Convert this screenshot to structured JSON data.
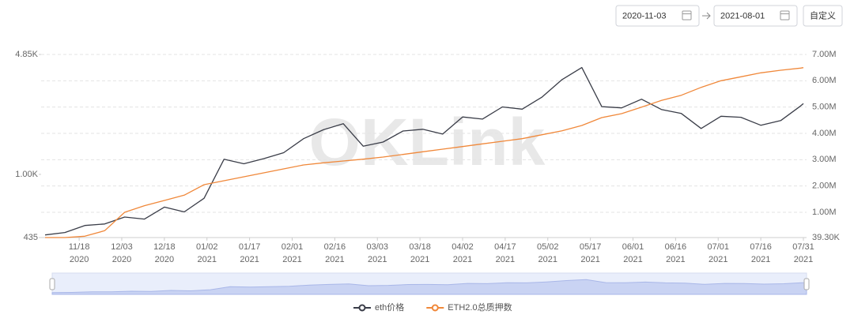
{
  "date_range": {
    "start": "2020-11-03",
    "end": "2021-08-01"
  },
  "custom_button": "自定义",
  "chart_data": {
    "type": "line",
    "watermark": "OKLink",
    "x": [
      "2020-11-06",
      "2020-11-13",
      "2020-11-20",
      "2020-11-27",
      "2020-12-04",
      "2020-12-11",
      "2020-12-18",
      "2020-12-25",
      "2021-01-01",
      "2021-01-08",
      "2021-01-15",
      "2021-01-22",
      "2021-01-29",
      "2021-02-05",
      "2021-02-12",
      "2021-02-19",
      "2021-02-26",
      "2021-03-05",
      "2021-03-12",
      "2021-03-19",
      "2021-03-26",
      "2021-04-02",
      "2021-04-09",
      "2021-04-16",
      "2021-04-23",
      "2021-04-30",
      "2021-05-07",
      "2021-05-14",
      "2021-05-21",
      "2021-05-28",
      "2021-06-04",
      "2021-06-11",
      "2021-06-18",
      "2021-06-25",
      "2021-07-02",
      "2021-07-09",
      "2021-07-16",
      "2021-07-23",
      "2021-07-30",
      "2021-07-31"
    ],
    "series": [
      {
        "name": "eth价格",
        "color": "#3a3d48",
        "axis": "y",
        "values": [
          450,
          465,
          510,
          520,
          570,
          555,
          650,
          610,
          730,
          1220,
          1150,
          1230,
          1330,
          1600,
          1800,
          1950,
          1450,
          1530,
          1770,
          1810,
          1700,
          2130,
          2070,
          2430,
          2360,
          2770,
          3480,
          4080,
          2440,
          2400,
          2690,
          2350,
          2230,
          1830,
          2150,
          2120,
          1910,
          2030,
          2460,
          2540
        ]
      },
      {
        "name": "ETH2.0总质押数",
        "color": "#f0883a",
        "axis": "y2",
        "values": [
          39300,
          40000,
          90000,
          300000,
          1000000,
          1250000,
          1450000,
          1650000,
          2050000,
          2200000,
          2350000,
          2500000,
          2650000,
          2800000,
          2880000,
          2950000,
          3020000,
          3100000,
          3200000,
          3300000,
          3400000,
          3500000,
          3600000,
          3700000,
          3800000,
          3950000,
          4100000,
          4300000,
          4600000,
          4750000,
          5000000,
          5250000,
          5450000,
          5750000,
          6000000,
          6150000,
          6300000,
          6400000,
          6480000,
          6500000
        ]
      }
    ],
    "xlim": [
      "2020-11-06",
      "2021-07-31"
    ],
    "xticks": [
      {
        "value": "2020-11-18",
        "label": [
          "11/18",
          "2020"
        ]
      },
      {
        "value": "2020-12-03",
        "label": [
          "12/03",
          "2020"
        ]
      },
      {
        "value": "2020-12-18",
        "label": [
          "12/18",
          "2020"
        ]
      },
      {
        "value": "2021-01-02",
        "label": [
          "01/02",
          "2021"
        ]
      },
      {
        "value": "2021-01-17",
        "label": [
          "01/17",
          "2021"
        ]
      },
      {
        "value": "2021-02-01",
        "label": [
          "02/01",
          "2021"
        ]
      },
      {
        "value": "2021-02-16",
        "label": [
          "02/16",
          "2021"
        ]
      },
      {
        "value": "2021-03-03",
        "label": [
          "03/03",
          "2021"
        ]
      },
      {
        "value": "2021-03-18",
        "label": [
          "03/18",
          "2021"
        ]
      },
      {
        "value": "2021-04-02",
        "label": [
          "04/02",
          "2021"
        ]
      },
      {
        "value": "2021-04-17",
        "label": [
          "04/17",
          "2021"
        ]
      },
      {
        "value": "2021-05-02",
        "label": [
          "05/02",
          "2021"
        ]
      },
      {
        "value": "2021-05-17",
        "label": [
          "05/17",
          "2021"
        ]
      },
      {
        "value": "2021-06-01",
        "label": [
          "06/01",
          "2021"
        ]
      },
      {
        "value": "2021-06-16",
        "label": [
          "06/16",
          "2021"
        ]
      },
      {
        "value": "2021-07-01",
        "label": [
          "07/01",
          "2021"
        ]
      },
      {
        "value": "2021-07-16",
        "label": [
          "07/16",
          "2021"
        ]
      },
      {
        "value": "2021-07-31",
        "label": [
          "07/31",
          "2021"
        ]
      }
    ],
    "ylim": [
      435,
      4850
    ],
    "y_log": true,
    "yticks": [
      435,
      {
        "value": 1000,
        "label": "1.00K"
      },
      {
        "value": 4850,
        "label": "4.85K"
      }
    ],
    "y2lim": [
      39300,
      7000000
    ],
    "y2ticks": [
      {
        "value": 39300,
        "label": "39.30K"
      },
      {
        "value": 1000000,
        "label": "1.00M"
      },
      {
        "value": 2000000,
        "label": "2.00M"
      },
      {
        "value": 3000000,
        "label": "3.00M"
      },
      {
        "value": 4000000,
        "label": "4.00M"
      },
      {
        "value": 5000000,
        "label": "5.00M"
      },
      {
        "value": 6000000,
        "label": "6.00M"
      },
      {
        "value": 7000000,
        "label": "7.00M"
      }
    ],
    "grid": true,
    "legend": "bottom"
  }
}
